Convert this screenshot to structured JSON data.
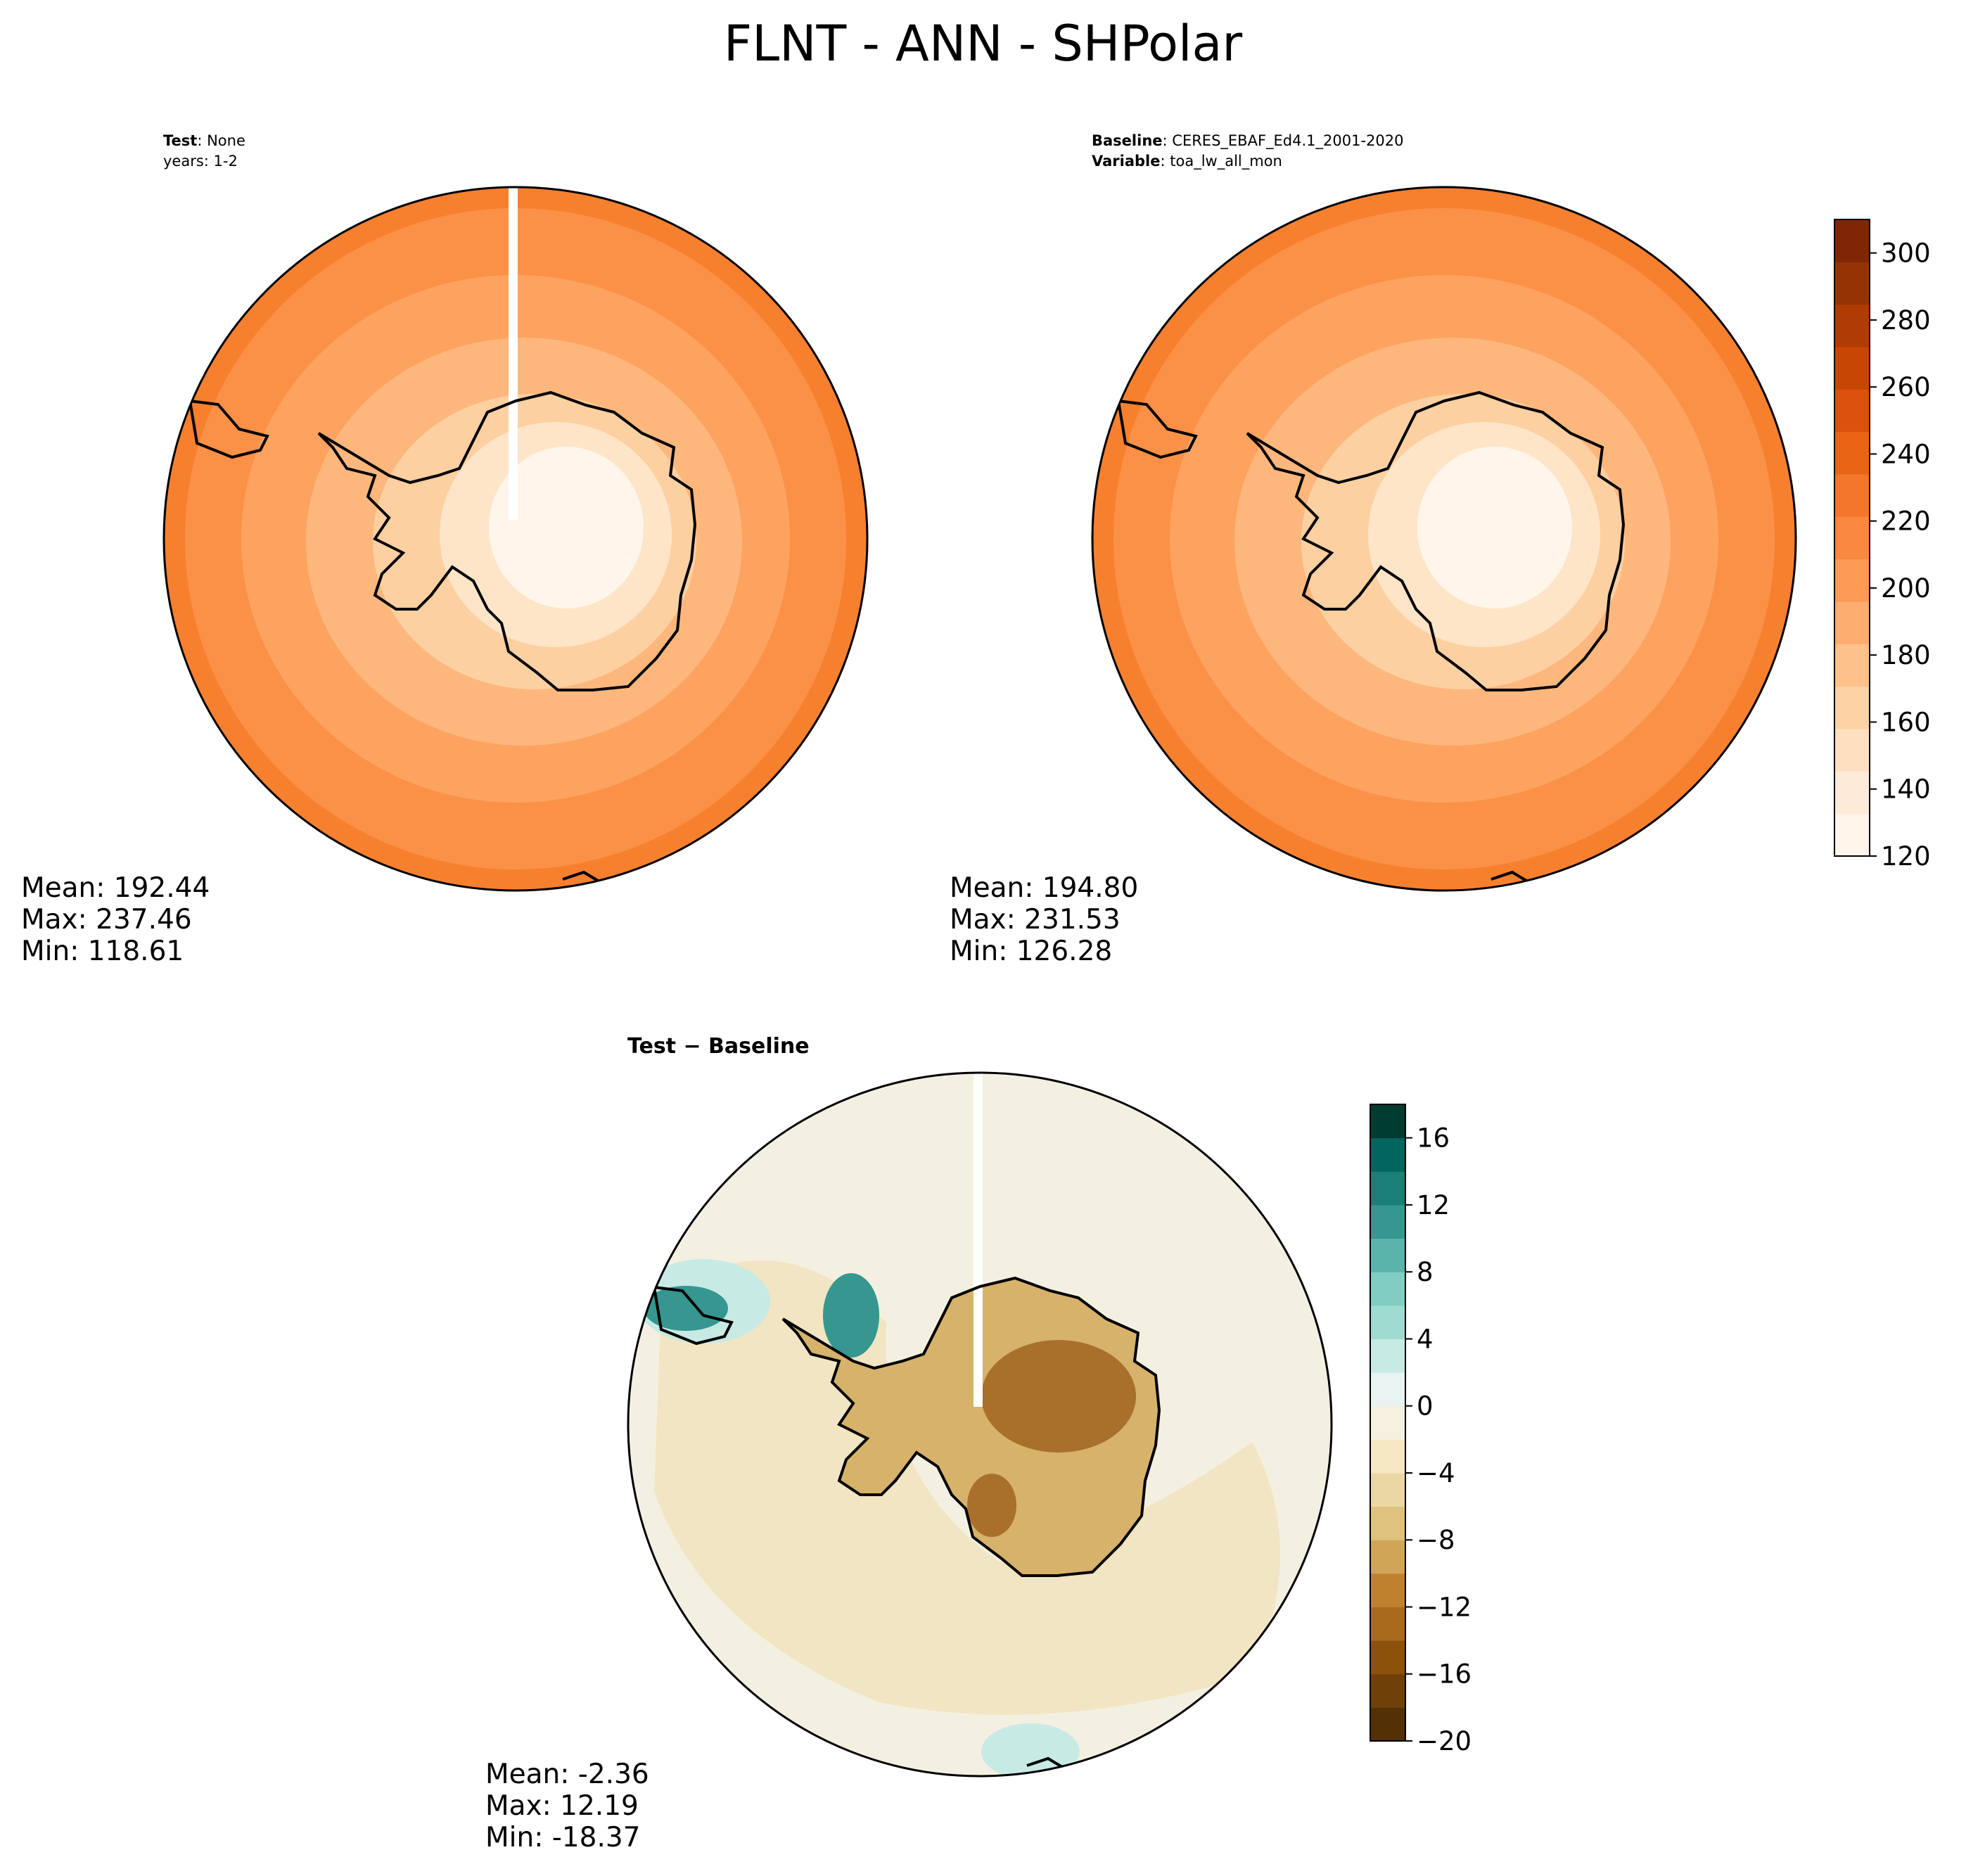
{
  "title": "FLNT - ANN - SHPolar",
  "panels": [
    {
      "id": "test",
      "header": {
        "label": "Test",
        "value": "None",
        "line2": "years: 1-2"
      },
      "stats": {
        "mean": "Mean: 192.44",
        "max": "Max: 237.46",
        "min": "Min: 118.61"
      }
    },
    {
      "id": "baseline",
      "header": {
        "label": "Baseline",
        "value": "CERES_EBAF_Ed4.1_2001-2020",
        "label2": "Variable",
        "value2": "toa_lw_all_mon"
      },
      "stats": {
        "mean": "Mean: 194.80",
        "max": "Max: 231.53",
        "min": "Min: 126.28"
      }
    },
    {
      "id": "diff",
      "header": {
        "label": "Test − Baseline"
      },
      "stats": {
        "mean": "Mean: -2.36",
        "max": "Max: 12.19",
        "min": "Min: -18.37"
      }
    }
  ],
  "colorbar_main": {
    "range": [
      120,
      310
    ],
    "ticks": [
      "120",
      "140",
      "160",
      "180",
      "200",
      "220",
      "240",
      "260",
      "280",
      "300"
    ],
    "colors": [
      "#fff5eb",
      "#feebd7",
      "#fee0c1",
      "#fdd2a5",
      "#fdc18a",
      "#fdad6f",
      "#fd9a55",
      "#f98840",
      "#f3762b",
      "#ea6416",
      "#dc510b",
      "#c84604",
      "#ae3c03",
      "#953403",
      "#7f2704"
    ]
  },
  "colorbar_diff": {
    "range": [
      -20,
      18
    ],
    "ticks": [
      "−20",
      "−16",
      "−12",
      "−8",
      "−4",
      "0",
      "4",
      "8",
      "12",
      "16"
    ],
    "colors": [
      "#543005",
      "#6f4109",
      "#8c510a",
      "#a86a1d",
      "#bf812d",
      "#d1a558",
      "#dfc27d",
      "#ebd7a4",
      "#f6e8c3",
      "#f5f0e0",
      "#e8f3f2",
      "#c7eae5",
      "#a0dbd1",
      "#80cdc1",
      "#5ab4ac",
      "#35978f",
      "#1c7f77",
      "#01665e",
      "#003c30"
    ]
  },
  "map_colors": {
    "main_outer": "#f7802f",
    "main_ring2": "#fb9147",
    "main_ring3": "#fda35f",
    "main_ring4": "#fdb77d",
    "main_ring5": "#fdd0a2",
    "main_ring6": "#fee5c8",
    "main_center": "#fff5eb",
    "diff_ocean": "#f4f0e1",
    "diff_tan": "#f2e5c3",
    "diff_brown": "#d7b26b",
    "diff_dark_brown": "#a8702a",
    "diff_teal_light": "#c7eae5",
    "diff_teal": "#35978f",
    "coast": "#000000"
  }
}
